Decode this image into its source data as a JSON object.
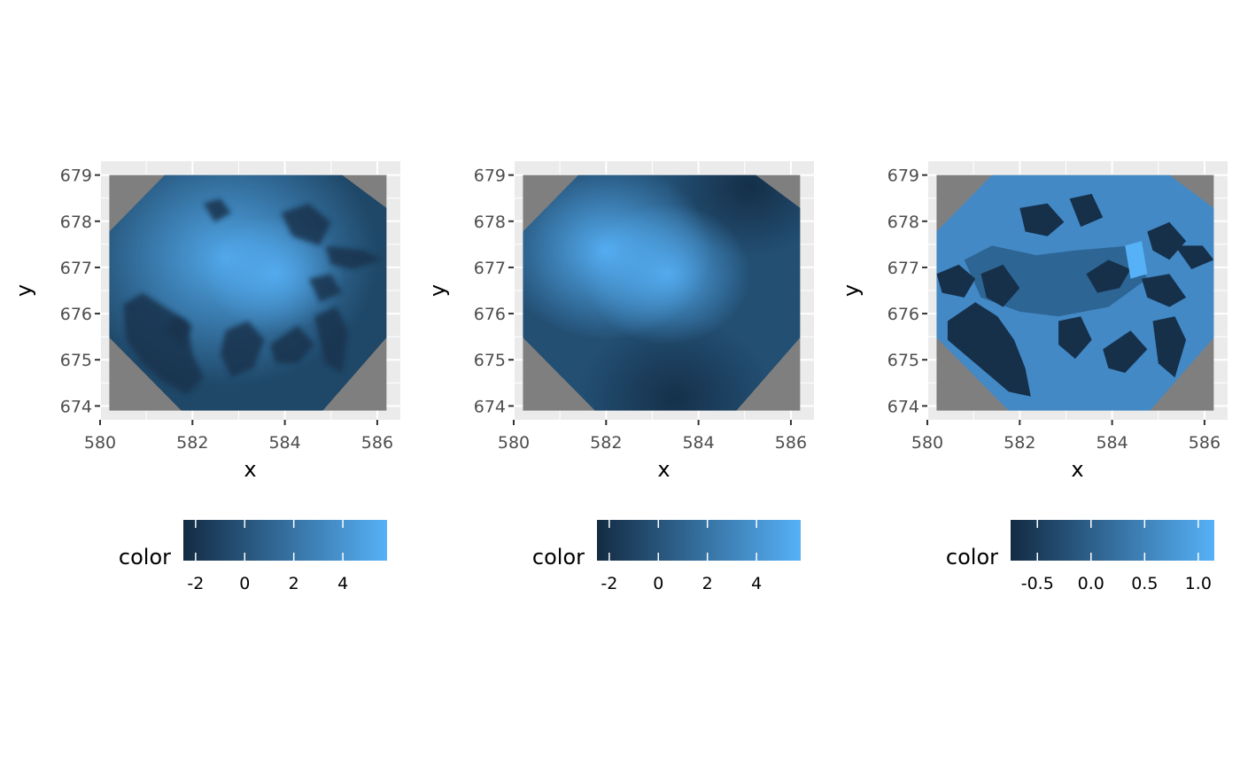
{
  "figure": {
    "panel_background": "#ebebeb",
    "gridline_color": "#ffffff",
    "na_fill": "#7f7f7f",
    "low_color": "#132b43",
    "high_color": "#56b1f7"
  },
  "chart_data": [
    {
      "type": "heatmap",
      "title": "",
      "xlabel": "x",
      "ylabel": "y",
      "xlim": [
        580,
        586.5
      ],
      "ylim": [
        673.7,
        679.3
      ],
      "x_ticks": [
        "580",
        "582",
        "584",
        "586"
      ],
      "y_ticks": [
        "674",
        "675",
        "676",
        "677",
        "678",
        "679"
      ],
      "raster_extent": {
        "x": [
          580.2,
          586.2
        ],
        "y": [
          673.9,
          679.0
        ]
      },
      "surface_style": "detailed",
      "legend": {
        "title": "color",
        "position": "bottom",
        "range": [
          -2.5,
          5.8
        ],
        "breaks": [
          "-2",
          "0",
          "2",
          "4"
        ]
      }
    },
    {
      "type": "heatmap",
      "title": "",
      "xlabel": "x",
      "ylabel": "y",
      "xlim": [
        580,
        586.5
      ],
      "ylim": [
        673.7,
        679.3
      ],
      "x_ticks": [
        "580",
        "582",
        "584",
        "586"
      ],
      "y_ticks": [
        "674",
        "675",
        "676",
        "677",
        "678",
        "679"
      ],
      "raster_extent": {
        "x": [
          580.2,
          586.2
        ],
        "y": [
          673.9,
          679.0
        ]
      },
      "surface_style": "smooth",
      "legend": {
        "title": "color",
        "position": "bottom",
        "range": [
          -2.5,
          5.8
        ],
        "breaks": [
          "-2",
          "0",
          "2",
          "4"
        ]
      }
    },
    {
      "type": "heatmap",
      "title": "",
      "xlabel": "x",
      "ylabel": "y",
      "xlim": [
        580,
        586.5
      ],
      "ylim": [
        673.7,
        679.3
      ],
      "x_ticks": [
        "580",
        "582",
        "584",
        "586"
      ],
      "y_ticks": [
        "674",
        "675",
        "676",
        "677",
        "678",
        "679"
      ],
      "raster_extent": {
        "x": [
          580.2,
          586.2
        ],
        "y": [
          673.9,
          679.0
        ]
      },
      "surface_style": "categorical",
      "legend": {
        "title": "color",
        "position": "bottom",
        "range": [
          -0.75,
          1.15
        ],
        "breaks": [
          "-0.5",
          "0.0",
          "0.5",
          "1.0"
        ]
      }
    }
  ]
}
